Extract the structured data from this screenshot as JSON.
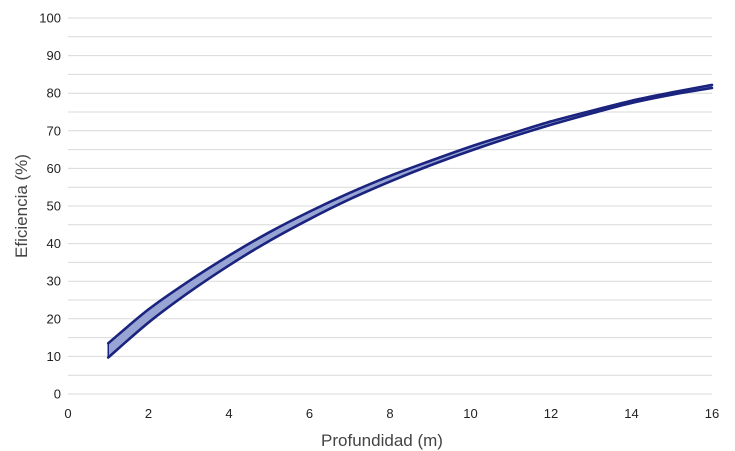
{
  "chart_data": {
    "type": "area",
    "title": "",
    "xlabel": "Profundidad (m)",
    "ylabel": "Eficiencia (%)",
    "xlim": [
      0,
      16
    ],
    "ylim": [
      0,
      100
    ],
    "x_ticks": [
      0,
      2,
      4,
      6,
      8,
      10,
      12,
      14,
      16
    ],
    "y_ticks": [
      0,
      10,
      20,
      30,
      40,
      50,
      60,
      70,
      80,
      90,
      100
    ],
    "y_minor_gridlines": true,
    "grid": true,
    "legend": "none",
    "colors": {
      "line": "#1a237e",
      "fill": "#97a4d4",
      "grid": "#d9d9d9"
    },
    "series": [
      {
        "x": [
          1,
          2,
          3,
          4,
          5,
          6,
          7,
          8,
          9,
          10,
          11,
          12,
          13,
          14,
          15,
          16
        ],
        "values": [
          13.5,
          22.5,
          30.0,
          36.8,
          43.0,
          48.5,
          53.5,
          58.0,
          62.0,
          65.8,
          69.2,
          72.5,
          75.3,
          78.0,
          80.2,
          82.2
        ]
      },
      {
        "x": [
          1,
          2,
          3,
          4,
          5,
          6,
          7,
          8,
          9,
          10,
          11,
          12,
          13,
          14,
          15,
          16
        ],
        "values": [
          9.7,
          19.0,
          27.0,
          34.2,
          40.7,
          46.5,
          51.8,
          56.5,
          60.8,
          64.7,
          68.3,
          71.6,
          74.6,
          77.4,
          79.6,
          81.4
        ]
      }
    ]
  }
}
